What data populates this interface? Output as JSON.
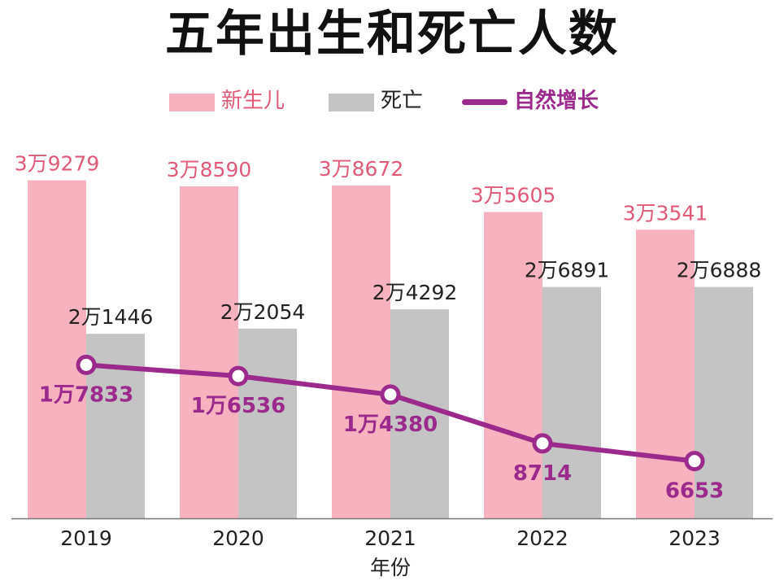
{
  "chart_data": {
    "type": "bar",
    "title": "五年出生和死亡人数",
    "xlabel": "年份",
    "ylabel": "",
    "categories": [
      "2019",
      "2020",
      "2021",
      "2022",
      "2023"
    ],
    "series": [
      {
        "name": "新生儿",
        "type": "bar",
        "color": "#f6b3bf",
        "label_color": "#e05a78",
        "values": [
          39279,
          38590,
          38672,
          35605,
          33541
        ],
        "labels": [
          "3万9279",
          "3万8590",
          "3万8672",
          "3万5605",
          "3万3541"
        ]
      },
      {
        "name": "死亡",
        "type": "bar",
        "color": "#c4c4c4",
        "label_color": "#222222",
        "values": [
          21446,
          22054,
          24292,
          26891,
          26888
        ],
        "labels": [
          "2万1446",
          "2万2054",
          "2万4292",
          "2万6891",
          "2万6888"
        ]
      },
      {
        "name": "自然增长",
        "type": "line",
        "color": "#9b2a8c",
        "label_color": "#9b2a8c",
        "values": [
          17833,
          16536,
          14380,
          8714,
          6653
        ],
        "labels": [
          "1万7833",
          "1万6536",
          "1万4380",
          "8714",
          "6653"
        ]
      }
    ],
    "ylim": [
      0,
      40000
    ],
    "grid": false,
    "legend_position": "top"
  }
}
